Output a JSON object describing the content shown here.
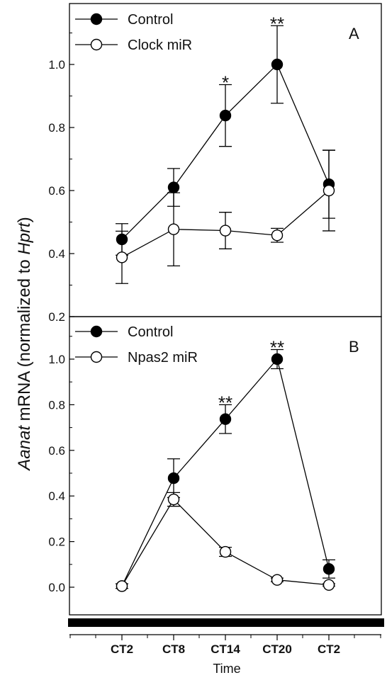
{
  "chart_data": [
    {
      "type": "line",
      "panel_label": "A",
      "x_categories": [
        "CT2",
        "CT8",
        "CT14",
        "CT20",
        "CT2"
      ],
      "ylim": [
        0.2,
        1.15
      ],
      "yticks": [
        0.2,
        0.4,
        0.6,
        0.8,
        1.0
      ],
      "ytick_labels": [
        "0.2",
        "0.4",
        "0.6",
        "0.8",
        "1.0"
      ],
      "series": [
        {
          "name": "Control",
          "marker": "filled-circle",
          "color": "#000000",
          "values": [
            0.445,
            0.61,
            0.838,
            1.0,
            0.62
          ],
          "errors": [
            0.05,
            0.06,
            0.098,
            0.123,
            0.108
          ]
        },
        {
          "name": "Clock miR",
          "marker": "open-circle",
          "color": "#000000",
          "values": [
            0.388,
            0.477,
            0.473,
            0.458,
            0.6
          ],
          "errors": [
            0.083,
            0.116,
            0.058,
            0.022,
            0.128
          ]
        }
      ],
      "significance": [
        {
          "category_index": 2,
          "label": "*"
        },
        {
          "category_index": 3,
          "label": "**"
        }
      ],
      "legend_position": "top-left"
    },
    {
      "type": "line",
      "panel_label": "B",
      "x_categories": [
        "CT2",
        "CT8",
        "CT14",
        "CT20",
        "CT2"
      ],
      "ylim": [
        -0.12,
        1.15
      ],
      "yticks": [
        0.0,
        0.2,
        0.4,
        0.6,
        0.8,
        1.0
      ],
      "ytick_labels": [
        "0.0",
        "0.2",
        "0.4",
        "0.6",
        "0.8",
        "1.0"
      ],
      "series": [
        {
          "name": "Control",
          "marker": "filled-circle",
          "color": "#000000",
          "values": [
            0.005,
            0.478,
            0.737,
            1.0,
            0.08
          ],
          "errors": [
            0.01,
            0.085,
            0.063,
            0.042,
            0.04
          ]
        },
        {
          "name": "Npas2 miR",
          "marker": "open-circle",
          "color": "#000000",
          "values": [
            0.005,
            0.385,
            0.155,
            0.032,
            0.01
          ],
          "errors": [
            0.01,
            0.03,
            0.02,
            0.008,
            0.005
          ]
        }
      ],
      "significance": [
        {
          "category_index": 2,
          "label": "**"
        },
        {
          "category_index": 3,
          "label": "**"
        }
      ],
      "legend_position": "top-left"
    }
  ],
  "shared": {
    "xlabel": "Time",
    "ylabel_italic": "Aanat",
    "ylabel_mid": " mRNA (normalized to ",
    "ylabel_italic2": "Hprt",
    "ylabel_end": ")"
  }
}
